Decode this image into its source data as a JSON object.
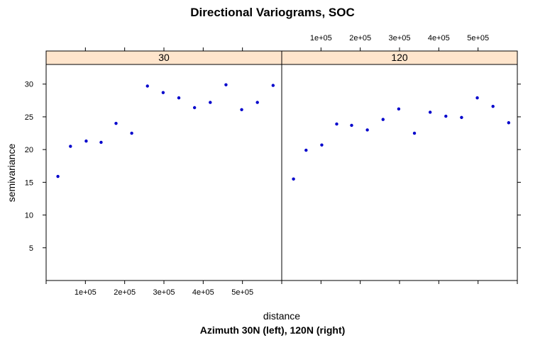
{
  "chart_data": {
    "type": "scatter",
    "title": "Directional Variograms, SOC",
    "xlabel": "distance",
    "ylabel": "semivariance",
    "sub": "Azimuth 30N (left), 120N (right)",
    "xlim": [
      0,
      600000
    ],
    "ylim": [
      0,
      33
    ],
    "yticks": [
      5,
      10,
      15,
      20,
      25,
      30
    ],
    "xticks": [
      100000,
      200000,
      300000,
      400000,
      500000
    ],
    "xtick_labels": [
      "1e+05",
      "2e+05",
      "3e+05",
      "4e+05",
      "5e+05"
    ],
    "point_color": "#0000cc",
    "strip_color": "#ffe5cc",
    "panels": [
      {
        "strip": "30",
        "x": [
          30000,
          62000,
          102000,
          140000,
          178000,
          218000,
          258000,
          298000,
          338000,
          378000,
          418000,
          458000,
          498000,
          538000,
          578000
        ],
        "y": [
          15.9,
          20.5,
          21.3,
          21.1,
          24.0,
          22.5,
          29.7,
          28.7,
          27.9,
          26.4,
          27.2,
          29.9,
          26.1,
          27.2,
          29.8
        ]
      },
      {
        "strip": "120",
        "x": [
          30000,
          62000,
          102000,
          140000,
          178000,
          218000,
          258000,
          298000,
          338000,
          378000,
          418000,
          458000,
          498000,
          538000,
          578000
        ],
        "y": [
          15.5,
          19.9,
          20.7,
          23.9,
          23.7,
          23.0,
          24.6,
          26.2,
          22.5,
          25.7,
          25.1,
          24.9,
          27.9,
          26.6,
          24.1
        ]
      }
    ]
  }
}
